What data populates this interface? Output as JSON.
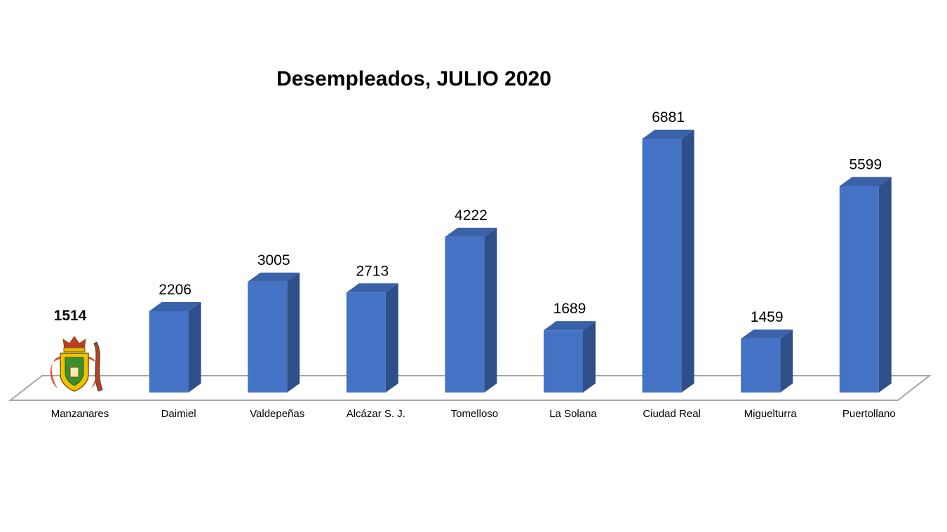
{
  "chart_data": {
    "type": "bar",
    "title": "Desempleados, JULIO 2020",
    "xlabel": "",
    "ylabel": "",
    "categories": [
      "Manzanares",
      "Daimiel",
      "Valdepeñas",
      "Alcázar S. J.",
      "Tomelloso",
      "La Solana",
      "Ciudad Real",
      "Miguelturra",
      "Puertollano"
    ],
    "values": [
      1514,
      2206,
      3005,
      2713,
      4222,
      1689,
      6881,
      1459,
      5599
    ],
    "highlight_index": 0,
    "highlight_mark": "coat-of-arms",
    "ylim": [
      0,
      7000
    ],
    "grid": false,
    "legend": "none",
    "bar_color": "#4472C4",
    "bar_side_color": "#2F4F8A",
    "bar_top_color": "#3A62A8"
  }
}
